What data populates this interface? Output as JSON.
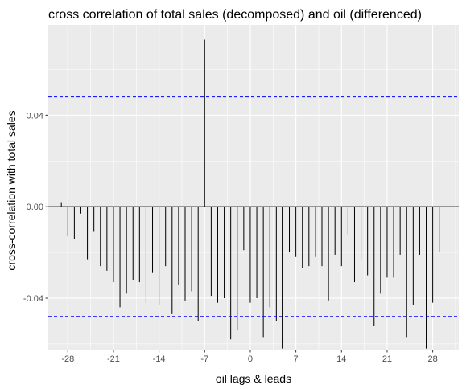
{
  "chart_data": {
    "type": "bar",
    "title": "cross correlation of total sales (decomposed) and oil (differenced)",
    "xlabel": "oil lags & leads",
    "ylabel": "cross-correlation with total sales",
    "xlim": [
      -31,
      32
    ],
    "ylim": [
      -0.0625,
      0.0795
    ],
    "x_ticks": [
      -28,
      -21,
      -14,
      -7,
      0,
      7,
      14,
      21,
      28
    ],
    "x_tick_labels": [
      "-28",
      "-21",
      "-14",
      "-7",
      "0",
      "7",
      "14",
      "21",
      "28"
    ],
    "y_ticks": [
      -0.04,
      0.0,
      0.04
    ],
    "y_tick_labels": [
      "-0.04",
      "0.00",
      "0.04"
    ],
    "confidence_bound": 0.048,
    "grid": true,
    "x": [
      -29,
      -28,
      -27,
      -26,
      -25,
      -24,
      -23,
      -22,
      -21,
      -20,
      -19,
      -18,
      -17,
      -16,
      -15,
      -14,
      -13,
      -12,
      -11,
      -10,
      -9,
      -8,
      -7,
      -6,
      -5,
      -4,
      -3,
      -2,
      -1,
      0,
      1,
      2,
      3,
      4,
      5,
      6,
      7,
      8,
      9,
      10,
      11,
      12,
      13,
      14,
      15,
      16,
      17,
      18,
      19,
      20,
      21,
      22,
      23,
      24,
      25,
      26,
      27,
      28,
      29
    ],
    "values": [
      0.002,
      -0.013,
      -0.014,
      -0.003,
      -0.023,
      -0.011,
      -0.026,
      -0.028,
      -0.033,
      -0.044,
      -0.038,
      -0.032,
      -0.033,
      -0.042,
      -0.029,
      -0.043,
      -0.026,
      -0.047,
      -0.034,
      -0.041,
      -0.037,
      -0.05,
      0.073,
      -0.039,
      -0.042,
      -0.04,
      -0.058,
      -0.054,
      -0.019,
      -0.042,
      -0.04,
      -0.057,
      -0.044,
      -0.05,
      -0.062,
      -0.02,
      -0.022,
      -0.027,
      -0.026,
      -0.022,
      -0.026,
      -0.041,
      -0.021,
      -0.026,
      -0.012,
      -0.033,
      -0.023,
      -0.03,
      -0.052,
      -0.038,
      -0.031,
      -0.031,
      -0.021,
      -0.057,
      -0.043,
      -0.021,
      -0.062,
      -0.042,
      -0.02
    ],
    "colors": {
      "panel": "#ebebeb",
      "grid_major": "#ffffff",
      "bar": "#000000",
      "bound": "#0000ff",
      "tick": "#333333"
    }
  }
}
